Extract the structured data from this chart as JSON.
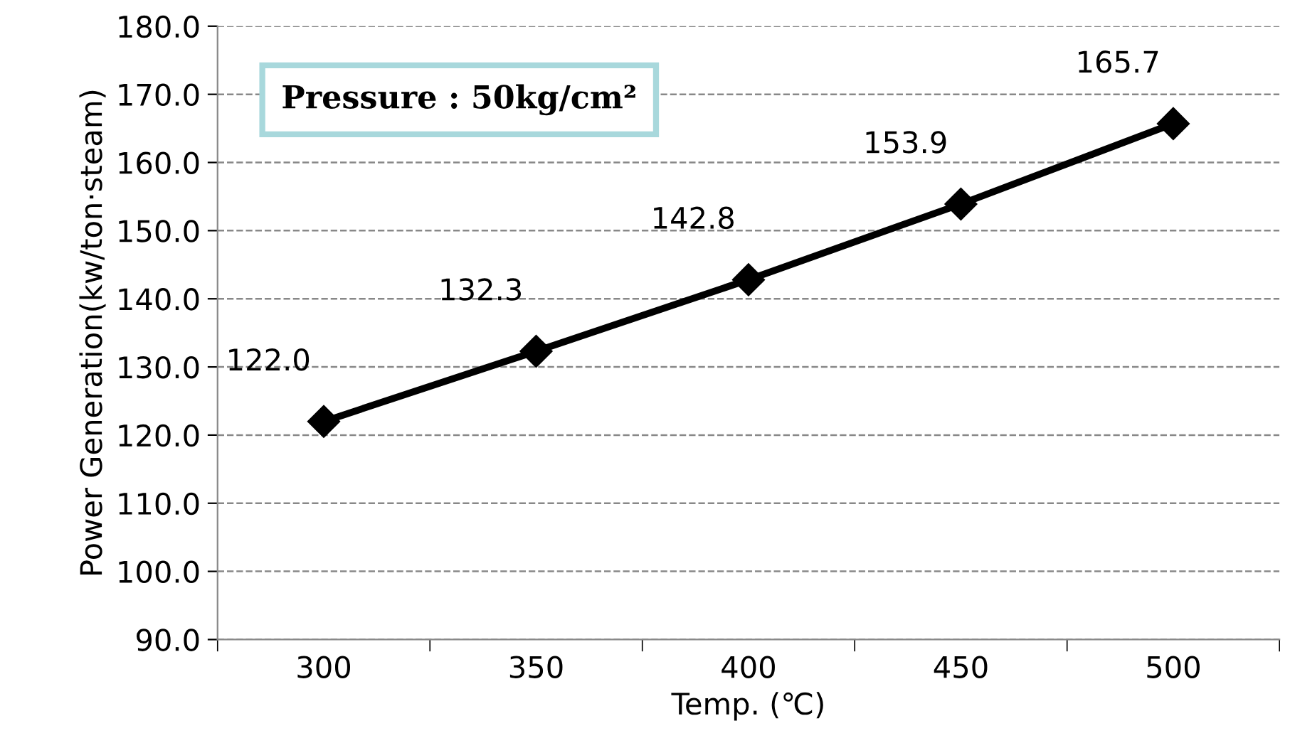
{
  "chart_data": {
    "type": "line",
    "xlabel": "Temp. (℃)",
    "ylabel": "Power Generation(kw/ton·steam)",
    "annotations": [
      "Pressure : 50kg/cm²"
    ],
    "categories": [
      "300",
      "350",
      "400",
      "450",
      "500"
    ],
    "series": [
      {
        "color": "#000000",
        "values": [
          122.0,
          132.3,
          142.8,
          153.9,
          165.7
        ],
        "value_labels": [
          "122.0",
          "132.3",
          "142.8",
          "153.9",
          "165.7"
        ]
      }
    ],
    "ylim": [
      90,
      180
    ],
    "yticks": [
      {
        "value": 90,
        "label": "90.0"
      },
      {
        "value": 100,
        "label": "100.0"
      },
      {
        "value": 110,
        "label": "110.0"
      },
      {
        "value": 120,
        "label": "120.0"
      },
      {
        "value": 130,
        "label": "130.0"
      },
      {
        "value": 140,
        "label": "140.0"
      },
      {
        "value": 150,
        "label": "150.0"
      },
      {
        "value": 160,
        "label": "160.0"
      },
      {
        "value": 170,
        "label": "170.0"
      },
      {
        "value": 180,
        "label": "180.0"
      }
    ],
    "grid": "y",
    "marker": "diamond",
    "line_style": "solid",
    "legend": false
  }
}
